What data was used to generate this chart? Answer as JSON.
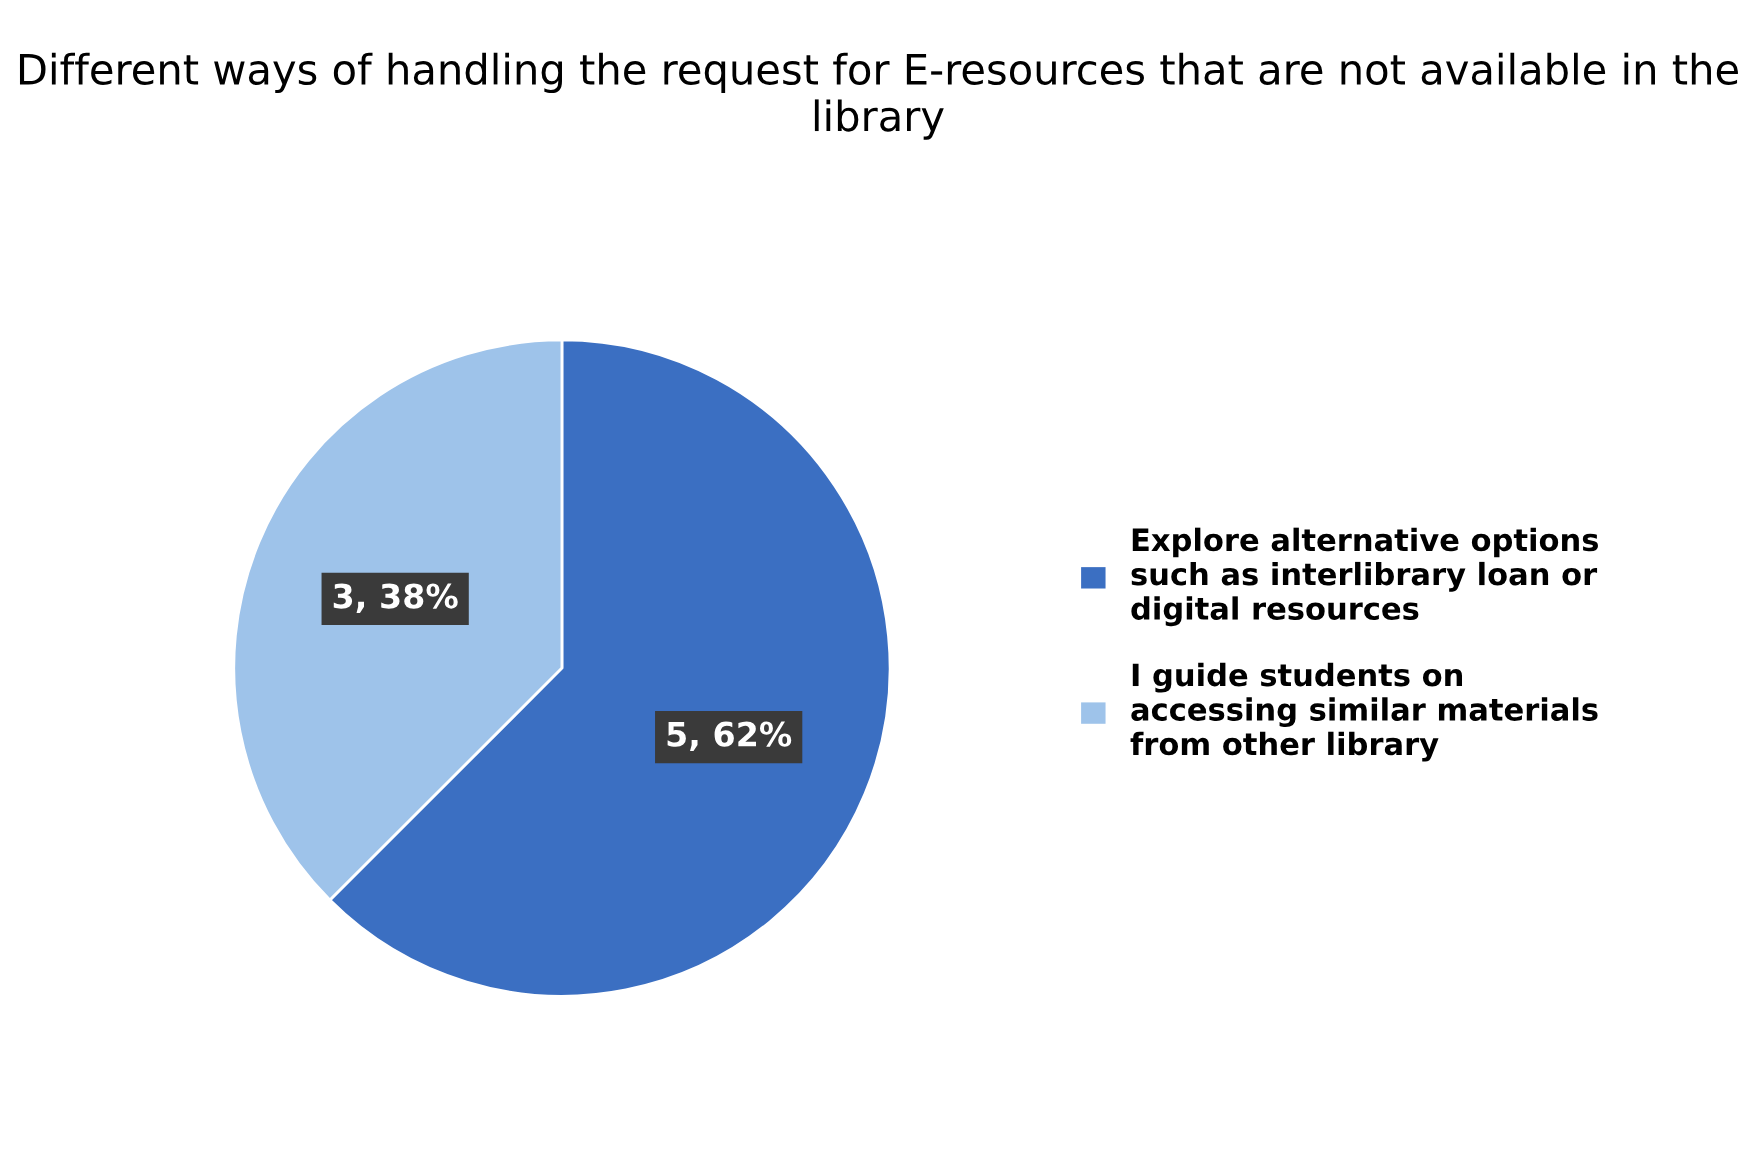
{
  "chart_data": {
    "type": "pie",
    "title": "Different ways of handling the request for E-resources that are not available in the library",
    "categories": [
      "Explore alternative options such as interlibrary loan or digital resources",
      "I guide students on accessing similar materials from other library"
    ],
    "values": [
      5,
      3
    ],
    "colors": [
      "#3b6fc2",
      "#9ec3ea"
    ],
    "value_labels": [
      "5, 62%",
      "3, 38%"
    ],
    "legend": "right"
  }
}
